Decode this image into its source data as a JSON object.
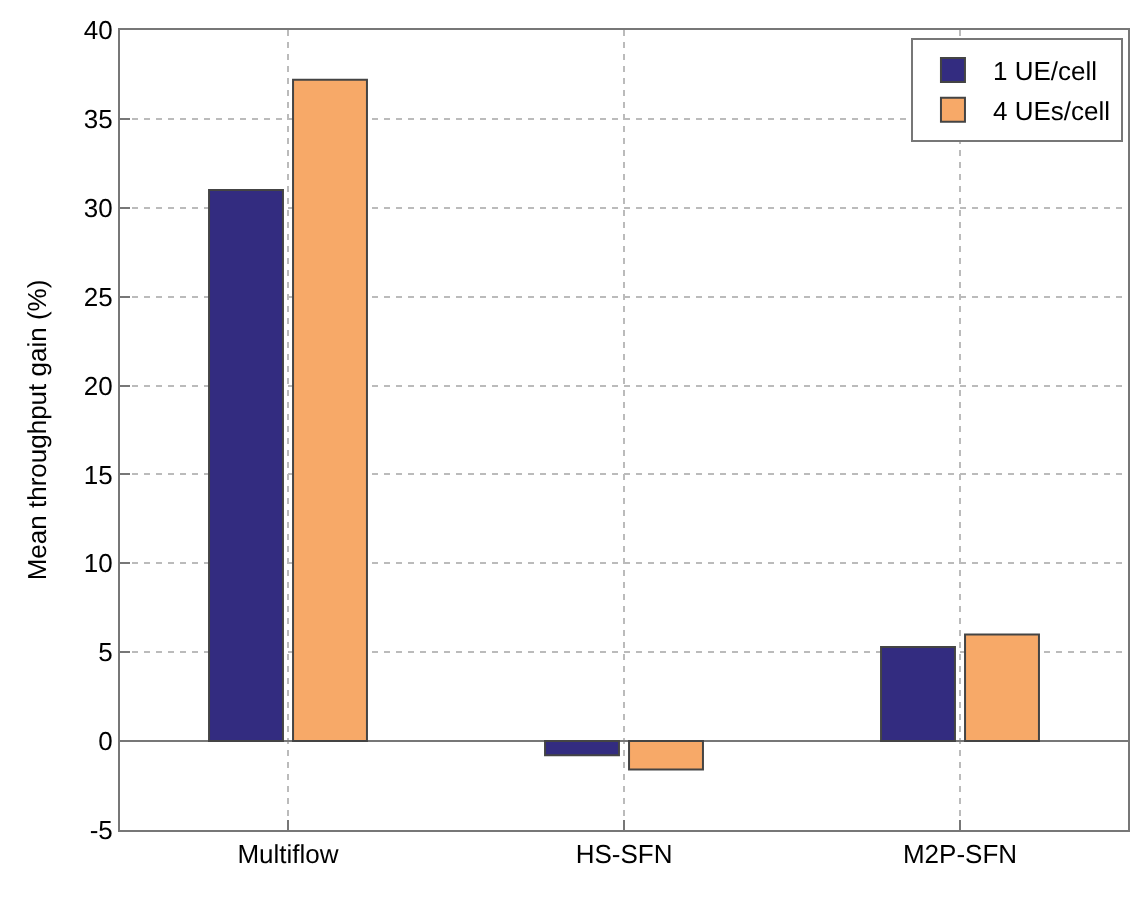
{
  "chart_data": {
    "type": "bar",
    "ylabel": "Mean throughput gain (%)",
    "categories": [
      "Multiflow",
      "HS-SFN",
      "M2P-SFN"
    ],
    "series": [
      {
        "name": "1 UE/cell",
        "color": "#332c80",
        "values": [
          31.0,
          -0.8,
          5.3
        ]
      },
      {
        "name": "4 UEs/cell",
        "color": "#f7a968",
        "values": [
          37.2,
          -1.6,
          6.0
        ]
      }
    ],
    "ylim": [
      -5,
      40
    ],
    "yticks": [
      -5,
      0,
      5,
      10,
      15,
      20,
      25,
      30,
      35,
      40
    ],
    "grid": true,
    "legend": "top right"
  }
}
